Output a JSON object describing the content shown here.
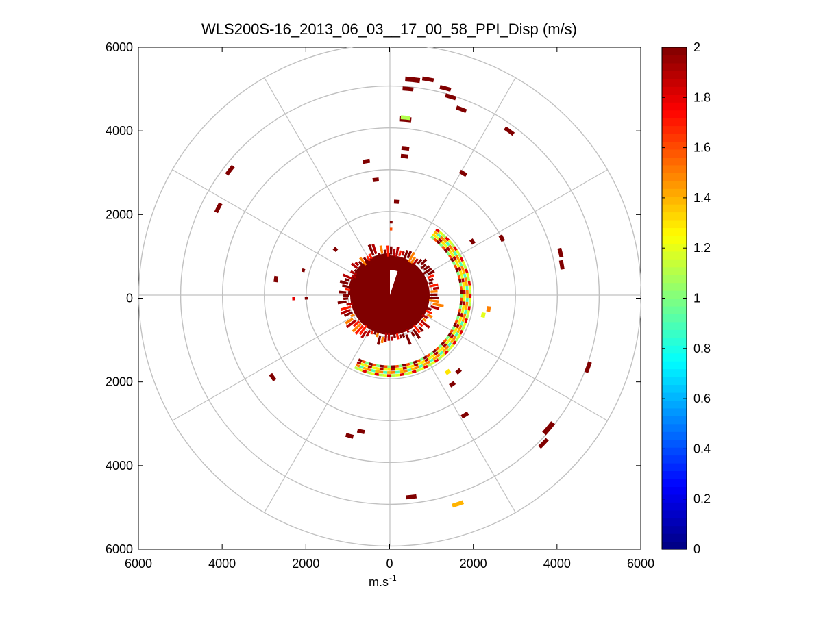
{
  "chart_data": {
    "type": "ppi_polar_scatter",
    "title": "WLS200S-16_2013_06_03__17_00_58_PPI_Disp (m/s)",
    "xlabel": "m.s",
    "xlabel_superscript": "-1",
    "ylabel": "",
    "xlim": [
      -6000,
      6000
    ],
    "ylim": [
      -6000,
      6000
    ],
    "x_tick_labels": [
      "6000",
      "4000",
      "2000",
      "0",
      "2000",
      "4000",
      "6000"
    ],
    "y_tick_labels": [
      "6000",
      "4000",
      "2000",
      "0",
      "2000",
      "4000",
      "6000"
    ],
    "range_rings": [
      1000,
      2000,
      3000,
      4000,
      5000,
      6000
    ],
    "spoke_angles_deg": [
      0,
      30,
      60,
      90,
      120,
      150,
      180,
      210,
      240,
      270,
      300,
      330
    ],
    "colorbar": {
      "min": 0,
      "max": 2,
      "colormap": "jet",
      "tick_labels": [
        "0",
        "0.2",
        "0.4",
        "0.6",
        "0.8",
        "1",
        "1.2",
        "1.4",
        "1.6",
        "1.8",
        "2"
      ]
    },
    "core_blobs": [
      {
        "az_start": 270,
        "az_end": 360,
        "r_max": 1000,
        "value": 2.0
      },
      {
        "az_start": 0,
        "az_end": 270,
        "r_max": 950,
        "value": 2.0
      }
    ],
    "arc_band": {
      "az_start": 35,
      "az_end": 205,
      "r_inner": 1680,
      "r_outer": 1900
    },
    "arc_values": [
      1.0,
      1.2,
      1.5,
      1.8,
      2.0,
      1.3,
      0.9,
      1.1,
      1.6,
      1.9,
      1.4,
      1.2
    ],
    "arcs": [
      {
        "az": 6,
        "r": 5180,
        "value": 2.0,
        "size": 3
      },
      {
        "az": 10,
        "r": 5240,
        "value": 2.0,
        "size": 2
      },
      {
        "az": 15,
        "r": 5120,
        "value": 2.0,
        "size": 2
      },
      {
        "az": 17,
        "r": 4960,
        "value": 2.0,
        "size": 2
      },
      {
        "az": 5,
        "r": 4950,
        "value": 2.0,
        "size": 2
      },
      {
        "az": 21,
        "r": 4760,
        "value": 2.0,
        "size": 2
      },
      {
        "az": 5,
        "r": 4220,
        "value": 2.0,
        "size": 3
      },
      {
        "az": 5,
        "r": 4260,
        "value": 1.1,
        "size": 2
      },
      {
        "az": 6,
        "r": 3530,
        "value": 2.0,
        "size": 2
      },
      {
        "az": 6,
        "r": 3340,
        "value": 2.0,
        "size": 2
      },
      {
        "az": -10,
        "r": 3250,
        "value": 2.0,
        "size": 2
      },
      {
        "az": -7,
        "r": 2780,
        "value": 2.0,
        "size": 2
      },
      {
        "az": 4,
        "r": 2240,
        "value": 2.0,
        "size": 2
      },
      {
        "az": 1,
        "r": 1750,
        "value": 2.0,
        "size": 1
      },
      {
        "az": 1,
        "r": 1580,
        "value": 1.6,
        "size": 1
      },
      {
        "az": 36,
        "r": 4850,
        "value": 2.0,
        "size": 2
      },
      {
        "az": 31,
        "r": 3400,
        "value": 2.0,
        "size": 2
      },
      {
        "az": 63,
        "r": 3000,
        "value": 2.0,
        "size": 2
      },
      {
        "az": 57,
        "r": 2350,
        "value": 2.0,
        "size": 2
      },
      {
        "az": 76,
        "r": 4200,
        "value": 2.0,
        "size": 2
      },
      {
        "az": 80,
        "r": 4170,
        "value": 2.0,
        "size": 2
      },
      {
        "az": 110,
        "r": 5040,
        "value": 2.0,
        "size": 2
      },
      {
        "az": 130,
        "r": 4950,
        "value": 2.0,
        "size": 3
      },
      {
        "az": 134,
        "r": 5100,
        "value": 2.0,
        "size": 2
      },
      {
        "az": 162,
        "r": 5250,
        "value": 1.4,
        "size": 2
      },
      {
        "az": 174,
        "r": 4850,
        "value": 2.0,
        "size": 2
      },
      {
        "az": 148,
        "r": 3380,
        "value": 2.0,
        "size": 2
      },
      {
        "az": 145,
        "r": 2600,
        "value": 2.0,
        "size": 2
      },
      {
        "az": 138,
        "r": 2450,
        "value": 2.0,
        "size": 2
      },
      {
        "az": 143,
        "r": 2300,
        "value": 1.3,
        "size": 2
      },
      {
        "az": 192,
        "r": 3330,
        "value": 2.0,
        "size": 2
      },
      {
        "az": 196,
        "r": 3500,
        "value": 2.0,
        "size": 2
      },
      {
        "az": 235,
        "r": 3420,
        "value": 2.0,
        "size": 2
      },
      {
        "az": 268,
        "r": 2300,
        "value": 1.8,
        "size": 1
      },
      {
        "az": 278,
        "r": 2750,
        "value": 2.0,
        "size": 2
      },
      {
        "az": 286,
        "r": 2150,
        "value": 2.0,
        "size": 1
      },
      {
        "az": 297,
        "r": 4600,
        "value": 2.0,
        "size": 2
      },
      {
        "az": 308,
        "r": 4850,
        "value": 2.0,
        "size": 2
      },
      {
        "az": 310,
        "r": 1700,
        "value": 2.0,
        "size": 2
      },
      {
        "az": 268,
        "r": 2000,
        "value": 2.0,
        "size": 1
      },
      {
        "az": 102,
        "r": 2280,
        "value": 1.2,
        "size": 2
      },
      {
        "az": 98,
        "r": 2380,
        "value": 1.5,
        "size": 2
      }
    ]
  }
}
